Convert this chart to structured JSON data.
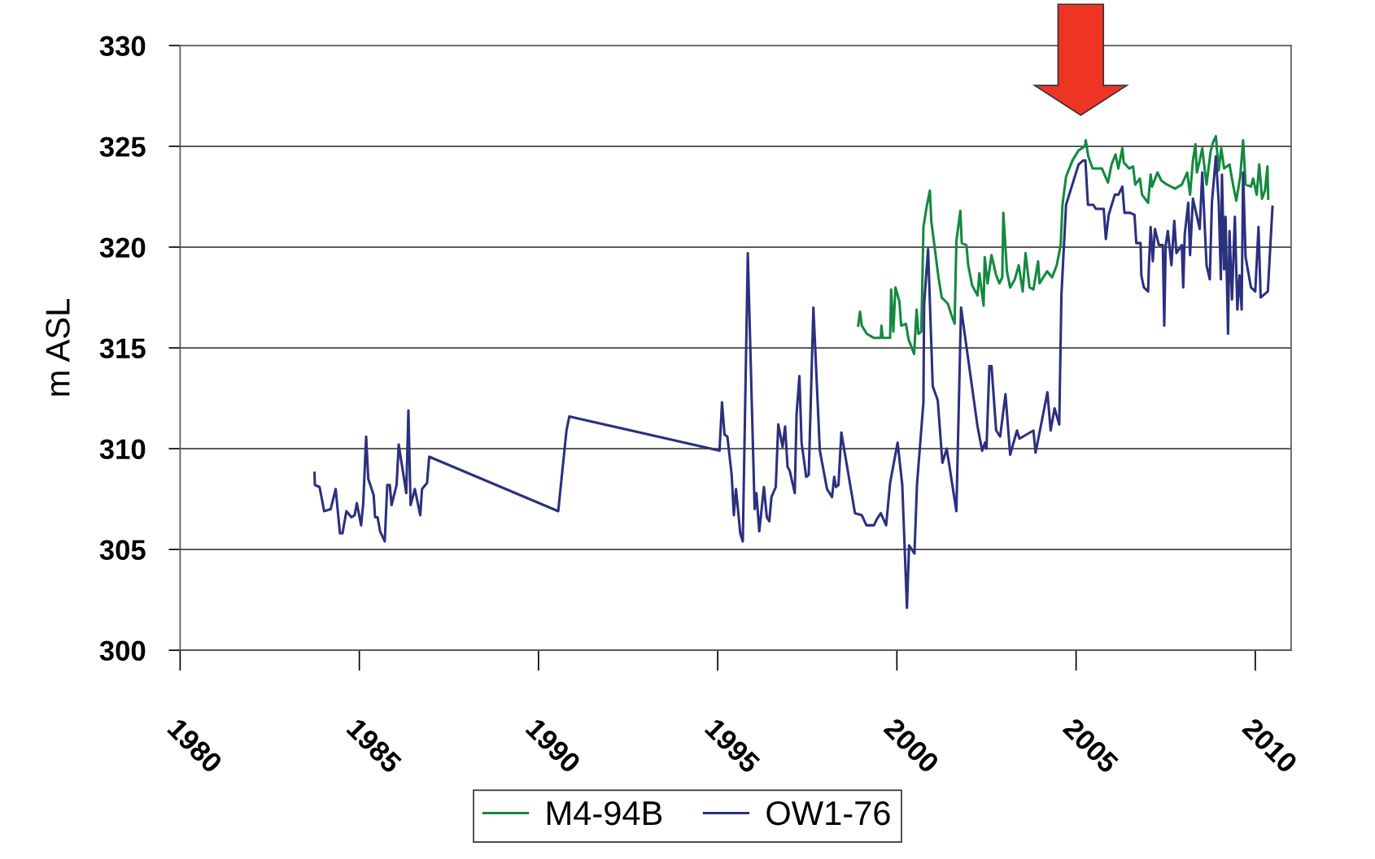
{
  "chart_data": {
    "type": "line",
    "ylabel": "m ASL",
    "xlim": [
      1980,
      2011
    ],
    "xticks": [
      1980,
      1985,
      1990,
      1995,
      2000,
      2005,
      2010
    ],
    "ylim": [
      300,
      330
    ],
    "yticks": [
      300,
      305,
      310,
      315,
      320,
      325,
      330
    ],
    "grid": "y",
    "legend": "bottom",
    "marker": "none",
    "line_style": "solid",
    "series": [
      {
        "name": "M4-94B",
        "color": "#14893f",
        "x": [
          1998.92,
          1998.97,
          1999.02,
          1999.16,
          1999.35,
          1999.55,
          1999.57,
          1999.6,
          1999.81,
          1999.84,
          1999.9,
          1999.96,
          2000.07,
          2000.12,
          2000.25,
          2000.33,
          2000.48,
          2000.55,
          2000.6,
          2000.68,
          2000.71,
          2000.74,
          2000.83,
          2000.92,
          2000.96,
          2001.16,
          2001.25,
          2001.42,
          2001.51,
          2001.61,
          2001.66,
          2001.77,
          2001.81,
          2001.94,
          2001.99,
          2002.1,
          2002.25,
          2002.3,
          2002.42,
          2002.45,
          2002.53,
          2002.64,
          2002.77,
          2002.86,
          2002.94,
          2002.97,
          2003.07,
          2003.16,
          2003.29,
          2003.4,
          2003.51,
          2003.59,
          2003.7,
          2003.81,
          2003.94,
          2003.98,
          2004.19,
          2004.33,
          2004.46,
          2004.57,
          2004.62,
          2004.72,
          2004.9,
          2005.07,
          2005.25,
          2005.27,
          2005.34,
          2005.46,
          2005.72,
          2005.89,
          2005.99,
          2006.1,
          2006.18,
          2006.29,
          2006.33,
          2006.48,
          2006.59,
          2006.65,
          2006.78,
          2006.84,
          2007.01,
          2007.08,
          2007.12,
          2007.27,
          2007.38,
          2007.54,
          2007.76,
          2007.95,
          2008.1,
          2008.18,
          2008.26,
          2008.33,
          2008.37,
          2008.45,
          2008.52,
          2008.64,
          2008.75,
          2008.82,
          2008.9,
          2008.98,
          2009.05,
          2009.13,
          2009.28,
          2009.39,
          2009.47,
          2009.58,
          2009.66,
          2009.73,
          2009.88,
          2009.94,
          2010.04,
          2010.11,
          2010.19,
          2010.27,
          2010.34,
          2010.36
        ],
        "values": [
          316.1,
          316.8,
          316.1,
          315.7,
          315.5,
          315.5,
          316.1,
          315.5,
          315.5,
          317.9,
          315.8,
          318.0,
          317.3,
          316.1,
          316.2,
          315.4,
          314.7,
          316.9,
          315.7,
          315.8,
          318.2,
          321.0,
          322.0,
          322.8,
          321.3,
          318.5,
          317.5,
          317.2,
          316.7,
          316.2,
          320.3,
          321.8,
          320.2,
          320.1,
          319.1,
          318.1,
          317.6,
          318.7,
          317.1,
          319.5,
          318.2,
          319.6,
          318.6,
          318.2,
          318.5,
          321.7,
          318.8,
          318.0,
          318.4,
          319.1,
          317.8,
          319.7,
          318.0,
          317.9,
          319.3,
          318.2,
          318.8,
          318.5,
          319.1,
          320.1,
          322.1,
          323.5,
          324.3,
          324.8,
          325.0,
          325.3,
          324.5,
          323.9,
          323.9,
          323.2,
          324.1,
          324.6,
          323.9,
          324.9,
          324.2,
          323.9,
          324.0,
          323.1,
          323.4,
          322.6,
          322.2,
          323.6,
          323.0,
          323.7,
          323.3,
          323.1,
          322.9,
          323.1,
          323.7,
          322.6,
          324.3,
          325.1,
          323.7,
          324.3,
          324.9,
          323.1,
          324.7,
          325.2,
          325.5,
          323.8,
          324.9,
          323.9,
          324.1,
          323.0,
          322.3,
          323.5,
          325.3,
          323.1,
          323.0,
          323.4,
          322.6,
          324.1,
          322.4,
          322.8,
          324.0,
          322.4
        ]
      },
      {
        "name": "OW1-76",
        "color": "#2b307f",
        "x": [
          1983.75,
          1983.76,
          1983.89,
          1984.02,
          1984.2,
          1984.34,
          1984.46,
          1984.53,
          1984.64,
          1984.78,
          1984.87,
          1984.93,
          1985.05,
          1985.11,
          1985.19,
          1985.25,
          1985.4,
          1985.44,
          1985.51,
          1985.58,
          1985.71,
          1985.78,
          1985.85,
          1985.9,
          1986.04,
          1986.1,
          1986.31,
          1986.37,
          1986.43,
          1986.55,
          1986.7,
          1986.75,
          1986.89,
          1986.95,
          1990.55,
          1990.78,
          1990.86,
          1995.05,
          1995.12,
          1995.19,
          1995.27,
          1995.39,
          1995.45,
          1995.51,
          1995.63,
          1995.7,
          1995.84,
          1996.03,
          1996.08,
          1996.16,
          1996.29,
          1996.37,
          1996.44,
          1996.5,
          1996.62,
          1996.69,
          1996.81,
          1996.88,
          1996.95,
          1997.01,
          1997.15,
          1997.2,
          1997.28,
          1997.34,
          1997.47,
          1997.54,
          1997.67,
          1997.85,
          1998.05,
          1998.19,
          1998.25,
          1998.3,
          1998.37,
          1998.45,
          1998.83,
          1999.02,
          1999.15,
          1999.36,
          1999.44,
          1999.55,
          1999.7,
          1999.81,
          2000.02,
          2000.15,
          2000.28,
          2000.34,
          2000.49,
          2000.56,
          2000.74,
          2000.76,
          2000.87,
          2001.0,
          2001.14,
          2001.27,
          2001.39,
          2001.66,
          2001.79,
          2002.25,
          2002.38,
          2002.46,
          2002.5,
          2002.58,
          2002.64,
          2002.77,
          2002.88,
          2003.03,
          2003.16,
          2003.35,
          2003.42,
          2003.81,
          2003.87,
          2004.2,
          2004.29,
          2004.4,
          2004.53,
          2004.59,
          2004.72,
          2005.07,
          2005.2,
          2005.26,
          2005.33,
          2005.48,
          2005.55,
          2005.77,
          2005.83,
          2005.91,
          2006.08,
          2006.18,
          2006.29,
          2006.35,
          2006.51,
          2006.63,
          2006.68,
          2006.8,
          2006.82,
          2006.89,
          2007.01,
          2007.03,
          2007.08,
          2007.14,
          2007.2,
          2007.31,
          2007.42,
          2007.46,
          2007.5,
          2007.56,
          2007.66,
          2007.74,
          2007.8,
          2007.95,
          2007.99,
          2008.03,
          2008.13,
          2008.18,
          2008.26,
          2008.45,
          2008.52,
          2008.64,
          2008.73,
          2008.79,
          2008.9,
          2008.98,
          2009.04,
          2009.07,
          2009.13,
          2009.17,
          2009.24,
          2009.28,
          2009.35,
          2009.43,
          2009.5,
          2009.56,
          2009.62,
          2009.66,
          2009.73,
          2009.88,
          2009.999,
          2010.09,
          2010.15,
          2010.35,
          2010.48
        ],
        "values": [
          308.8,
          308.2,
          308.1,
          306.9,
          307.0,
          308.0,
          305.8,
          305.8,
          306.9,
          306.6,
          306.7,
          307.3,
          306.2,
          307.3,
          310.6,
          308.5,
          307.7,
          306.6,
          306.6,
          305.9,
          305.4,
          308.2,
          308.2,
          307.2,
          308.2,
          310.2,
          307.8,
          311.9,
          307.2,
          308.0,
          306.7,
          308.0,
          308.3,
          309.6,
          306.9,
          310.9,
          311.6,
          309.9,
          312.3,
          310.7,
          310.6,
          308.7,
          306.7,
          308.0,
          305.8,
          305.4,
          319.7,
          307.0,
          307.8,
          305.9,
          308.1,
          306.6,
          306.4,
          307.6,
          308.1,
          311.2,
          310.1,
          311.1,
          309.1,
          308.9,
          307.8,
          311.7,
          313.6,
          310.3,
          308.6,
          308.7,
          317.0,
          309.9,
          308.0,
          307.6,
          308.6,
          308.1,
          308.2,
          310.8,
          306.8,
          306.7,
          306.2,
          306.2,
          306.5,
          306.8,
          306.2,
          308.3,
          310.3,
          308.2,
          302.1,
          305.2,
          304.8,
          308.2,
          312.3,
          317.2,
          319.9,
          313.1,
          312.4,
          309.3,
          310.0,
          306.9,
          317.0,
          311.1,
          309.9,
          310.3,
          310.0,
          314.1,
          314.1,
          310.9,
          310.6,
          312.7,
          309.7,
          310.9,
          310.5,
          310.9,
          309.8,
          312.8,
          310.9,
          312.0,
          311.2,
          317.6,
          322.1,
          324.1,
          324.3,
          324.3,
          322.1,
          322.1,
          321.9,
          321.9,
          320.4,
          321.6,
          322.6,
          322.6,
          323.0,
          321.7,
          321.7,
          321.6,
          320.2,
          320.2,
          318.6,
          318.0,
          317.8,
          319.0,
          321.0,
          319.3,
          320.9,
          320.1,
          320.1,
          316.1,
          320.1,
          320.8,
          319.1,
          321.3,
          319.7,
          320.1,
          318.0,
          320.6,
          322.2,
          319.6,
          322.4,
          320.9,
          323.7,
          319.1,
          318.4,
          322.2,
          324.5,
          322.2,
          318.4,
          323.6,
          318.9,
          321.5,
          315.7,
          320.8,
          317.4,
          321.5,
          316.9,
          318.6,
          316.9,
          323.7,
          319.5,
          318.0,
          317.8,
          321.0,
          317.5,
          317.8,
          322.0
        ]
      }
    ]
  }
}
